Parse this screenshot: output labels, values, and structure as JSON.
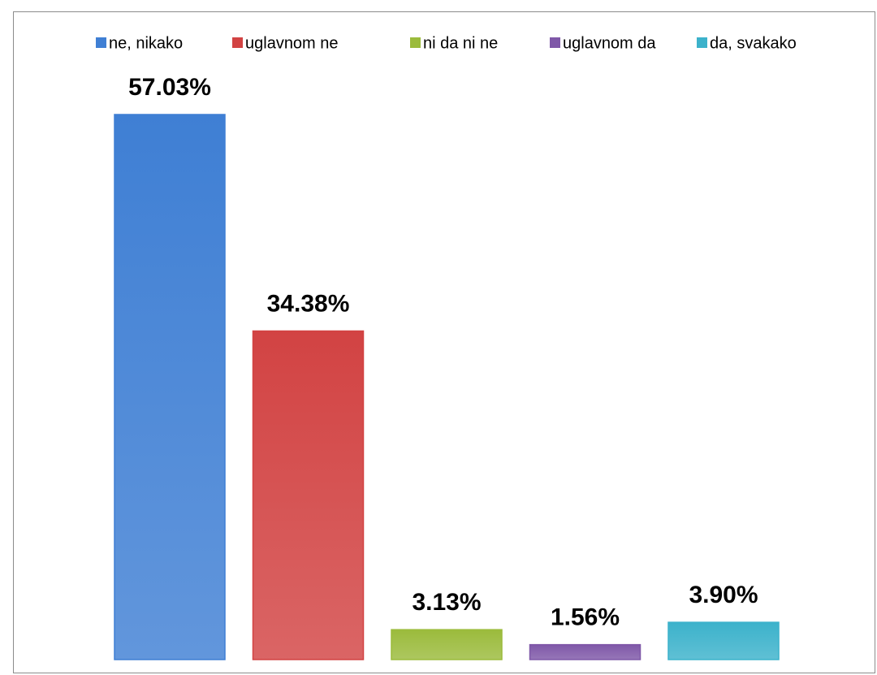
{
  "chart_data": {
    "type": "bar",
    "series": [
      {
        "name": "ne, nikako",
        "color": "#3f7fd4",
        "values": [
          57.03
        ],
        "value_labels": [
          "57.03%"
        ]
      },
      {
        "name": "uglavnom ne",
        "color": "#d24343",
        "values": [
          34.38
        ],
        "value_labels": [
          "34.38%"
        ]
      },
      {
        "name": "ni da ni ne",
        "color": "#9bbb3c",
        "values": [
          3.13
        ],
        "value_labels": [
          "3.13%"
        ]
      },
      {
        "name": "uglavnom da",
        "color": "#7f58a8",
        "values": [
          1.56
        ],
        "value_labels": [
          "1.56%"
        ]
      },
      {
        "name": "da, svakako",
        "color": "#3cb2cb",
        "values": [
          3.9
        ],
        "value_labels": [
          "3.90%"
        ]
      }
    ],
    "legend": "top"
  }
}
